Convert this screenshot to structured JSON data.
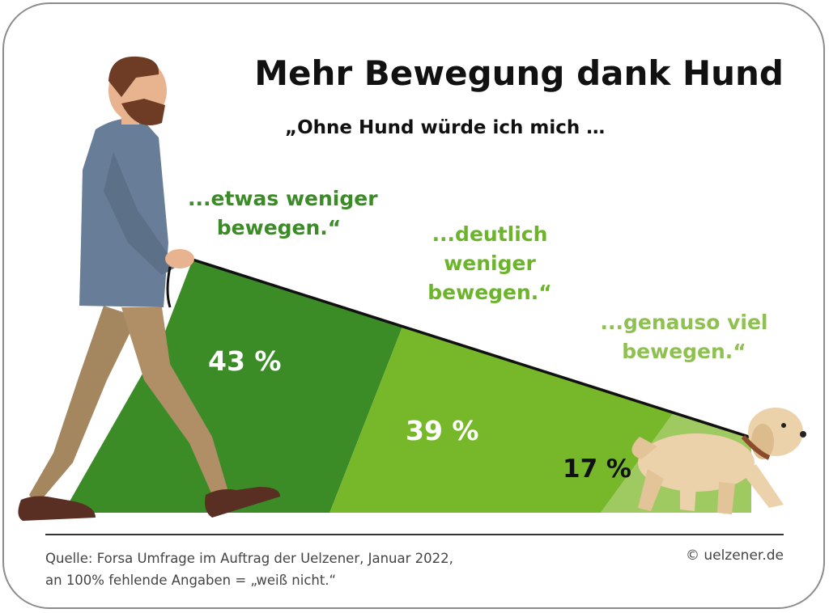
{
  "title": "Mehr Bewegung dank Hund",
  "subtitle": "„Ohne Hund würde ich mich …",
  "chart_data": {
    "type": "area",
    "title": "Mehr Bewegung dank Hund",
    "subtitle": "„Ohne Hund würde ich mich …",
    "categories": [
      "...etwas weniger bewegen.“",
      "...deutlich weniger bewegen.“",
      "...genauso viel bewegen.“"
    ],
    "values": [
      43,
      39,
      17
    ],
    "value_labels": [
      "43 %",
      "39 %",
      "17 %"
    ],
    "unit": "%"
  },
  "labels": {
    "cat1_line1": "...etwas weniger",
    "cat1_line2": "bewegen.“",
    "cat2_line1": "...deutlich",
    "cat2_line2": "weniger",
    "cat2_line3": "bewegen.“",
    "cat3_line1": "...genauso viel",
    "cat3_line2": "bewegen.“"
  },
  "colors": {
    "dark": "#3b8c27",
    "mid": "#77b82b",
    "light": "#9fca62"
  },
  "footer": {
    "source_line1": "Quelle: Forsa Umfrage im Auftrag der Uelzener, Januar 2022,",
    "source_line2": "an 100% fehlende Angaben = „weiß nicht.“",
    "copyright": "© uelzener.de"
  },
  "icons": {
    "man": "walking-man-illustration",
    "dog": "walking-dog-illustration"
  }
}
